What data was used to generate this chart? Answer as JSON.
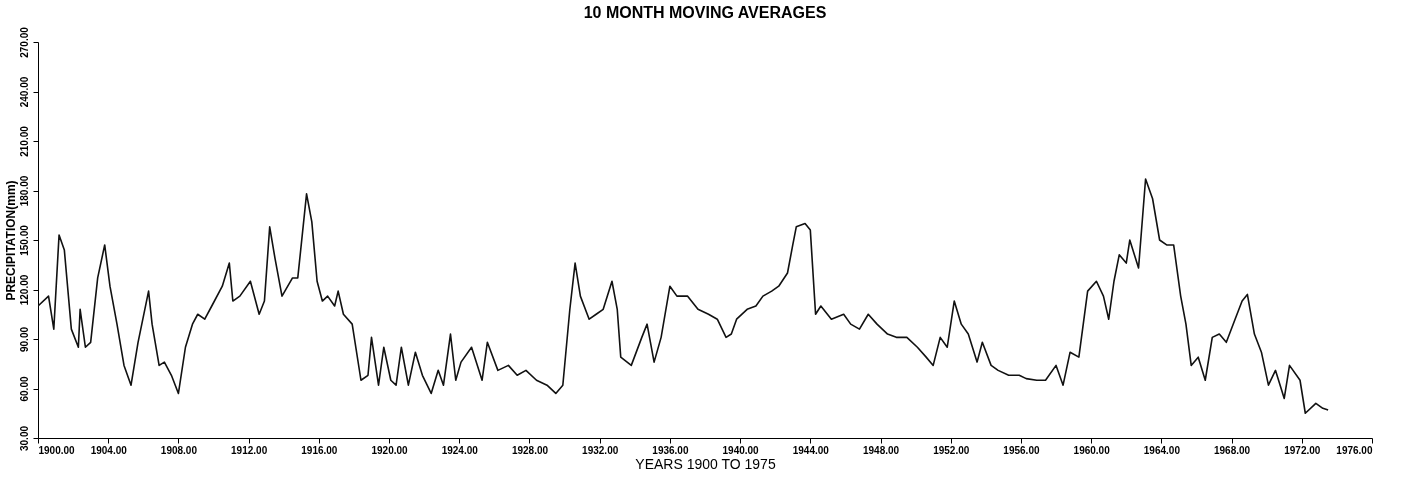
{
  "chart_data": {
    "type": "line",
    "title": "10 MONTH MOVING AVERAGES",
    "xlabel": "YEARS 1900 TO 1975",
    "ylabel": "PRECIPITATION(mm)",
    "xlim": [
      1900,
      1976
    ],
    "ylim": [
      30,
      270
    ],
    "xticks": [
      {
        "value": 1900,
        "label": "1900.00"
      },
      {
        "value": 1904,
        "label": "1904.00"
      },
      {
        "value": 1908,
        "label": "1908.00"
      },
      {
        "value": 1912,
        "label": "1912.00"
      },
      {
        "value": 1916,
        "label": "1916.00"
      },
      {
        "value": 1920,
        "label": "1920.00"
      },
      {
        "value": 1924,
        "label": "1924.00"
      },
      {
        "value": 1928,
        "label": "1928.00"
      },
      {
        "value": 1932,
        "label": "1932.00"
      },
      {
        "value": 1936,
        "label": "1936.00"
      },
      {
        "value": 1940,
        "label": "1940.00"
      },
      {
        "value": 1944,
        "label": "1944.00"
      },
      {
        "value": 1948,
        "label": "1948.00"
      },
      {
        "value": 1952,
        "label": "1952.00"
      },
      {
        "value": 1956,
        "label": "1956.00"
      },
      {
        "value": 1960,
        "label": "1960.00"
      },
      {
        "value": 1964,
        "label": "1964.00"
      },
      {
        "value": 1968,
        "label": "1968.00"
      },
      {
        "value": 1972,
        "label": "1972.00"
      },
      {
        "value": 1976,
        "label": "1976.00"
      }
    ],
    "yticks": [
      {
        "value": 30,
        "label": "30.00"
      },
      {
        "value": 60,
        "label": "60.00"
      },
      {
        "value": 90,
        "label": "90.00"
      },
      {
        "value": 120,
        "label": "120.00"
      },
      {
        "value": 150,
        "label": "150.00"
      },
      {
        "value": 180,
        "label": "180.00"
      },
      {
        "value": 210,
        "label": "210.00"
      },
      {
        "value": 240,
        "label": "240.00"
      },
      {
        "value": 270,
        "label": "270.00"
      }
    ],
    "grid": false,
    "x": [
      1900.0,
      1900.6,
      1900.9,
      1901.2,
      1901.5,
      1901.9,
      1902.3,
      1902.4,
      1902.7,
      1903.0,
      1903.4,
      1903.8,
      1904.1,
      1904.5,
      1904.9,
      1905.3,
      1905.7,
      1906.3,
      1906.5,
      1906.9,
      1907.2,
      1907.6,
      1908.0,
      1908.4,
      1908.8,
      1909.1,
      1909.5,
      1909.9,
      1910.5,
      1910.9,
      1911.1,
      1911.5,
      1912.1,
      1912.6,
      1912.9,
      1913.2,
      1913.5,
      1913.9,
      1914.5,
      1914.8,
      1915.3,
      1915.6,
      1915.9,
      1916.2,
      1916.5,
      1916.9,
      1917.1,
      1917.4,
      1917.9,
      1918.4,
      1918.8,
      1919.0,
      1919.4,
      1919.7,
      1920.1,
      1920.4,
      1920.7,
      1921.1,
      1921.5,
      1921.9,
      1922.4,
      1922.8,
      1923.1,
      1923.5,
      1923.8,
      1924.1,
      1924.7,
      1925.3,
      1925.6,
      1926.2,
      1926.8,
      1927.3,
      1927.8,
      1928.4,
      1929.0,
      1929.5,
      1929.9,
      1930.3,
      1930.6,
      1930.9,
      1931.4,
      1931.8,
      1932.2,
      1932.7,
      1933.0,
      1933.2,
      1933.8,
      1934.4,
      1934.7,
      1935.1,
      1935.5,
      1936.0,
      1936.4,
      1937.0,
      1937.6,
      1938.2,
      1938.7,
      1939.2,
      1939.5,
      1939.8,
      1940.4,
      1940.9,
      1941.3,
      1941.8,
      1942.2,
      1942.7,
      1943.0,
      1943.2,
      1943.7,
      1944.0,
      1944.3,
      1944.6,
      1945.2,
      1945.9,
      1946.3,
      1946.8,
      1947.3,
      1947.8,
      1948.4,
      1948.9,
      1949.5,
      1950.1,
      1950.6,
      1951.0,
      1951.4,
      1951.8,
      1952.2,
      1952.6,
      1953.0,
      1953.5,
      1953.8,
      1954.3,
      1954.7,
      1955.3,
      1955.9,
      1956.3,
      1956.9,
      1957.4,
      1958.0,
      1958.4,
      1958.8,
      1959.3,
      1959.8,
      1960.3,
      1960.7,
      1961.0,
      1961.3,
      1961.6,
      1962.0,
      1962.2,
      1962.7,
      1963.1,
      1963.5,
      1963.9,
      1964.3,
      1964.7,
      1965.1,
      1965.4,
      1965.7,
      1966.1,
      1966.5,
      1966.9,
      1967.3,
      1967.7,
      1968.2,
      1968.6,
      1968.9,
      1969.3,
      1969.7,
      1970.1,
      1970.5,
      1971.0,
      1971.3,
      1971.9,
      1972.2,
      1972.8,
      1973.2,
      1973.5
    ],
    "series": [
      {
        "color": "#111111",
        "values": [
          110,
          116,
          96,
          153,
          144,
          96,
          85,
          108,
          85,
          88,
          127,
          147,
          122,
          99,
          74,
          62,
          88,
          119,
          99,
          74,
          76,
          68,
          57,
          85,
          99,
          105,
          102,
          110,
          122,
          136,
          113,
          116,
          125,
          105,
          113,
          158,
          139,
          116,
          127,
          127,
          178,
          161,
          125,
          113,
          116,
          110,
          119,
          105,
          99,
          65,
          68,
          91,
          62,
          85,
          65,
          62,
          85,
          62,
          82,
          68,
          57,
          71,
          62,
          93,
          65,
          76,
          85,
          65,
          88,
          71,
          74,
          68,
          71,
          65,
          62,
          57,
          62,
          108,
          136,
          116,
          102,
          105,
          108,
          125,
          108,
          79,
          74,
          91,
          99,
          76,
          91,
          122,
          116,
          116,
          108,
          105,
          102,
          91,
          93,
          102,
          108,
          110,
          116,
          119,
          122,
          130,
          147,
          158,
          160,
          156,
          105,
          110,
          102,
          105,
          99,
          96,
          105,
          99,
          93,
          91,
          91,
          85,
          79,
          74,
          91,
          85,
          113,
          99,
          93,
          76,
          88,
          74,
          71,
          68,
          68,
          66,
          65,
          65,
          74,
          62,
          82,
          79,
          119,
          125,
          116,
          102,
          125,
          141,
          136,
          150,
          133,
          187,
          175,
          150,
          147,
          147,
          116,
          99,
          74,
          79,
          65,
          91,
          93,
          88,
          102,
          113,
          117,
          93,
          82,
          62,
          71,
          54,
          74,
          65,
          45,
          51,
          48,
          47
        ]
      }
    ]
  }
}
